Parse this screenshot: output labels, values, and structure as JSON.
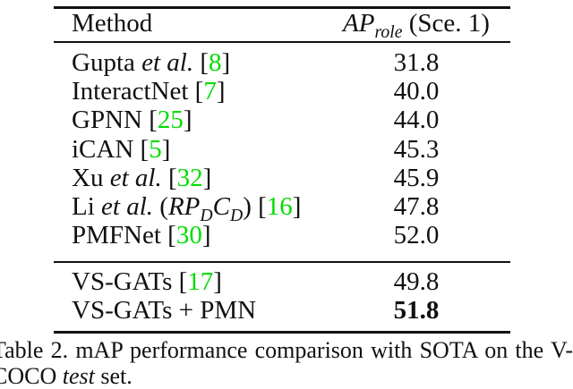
{
  "page": {
    "background": "#ffffff",
    "text_color": "#111111"
  },
  "colors": {
    "reference_green": "#00dd00",
    "rule_black": "#111111"
  },
  "table": {
    "header": {
      "method_label": "Method",
      "metric_segments": [
        {
          "t": "AP",
          "st": "m"
        },
        {
          "t": "role",
          "st": "s"
        },
        {
          "t": " (Sce. 1)",
          "st": "r"
        }
      ]
    },
    "groups": [
      {
        "rows": [
          {
            "segments": [
              {
                "t": "Gupta ",
                "st": "r"
              },
              {
                "t": "et al.",
                "st": "i"
              },
              {
                "t": " [",
                "st": "r"
              },
              {
                "t": "8",
                "st": "ref"
              },
              {
                "t": "]",
                "st": "r"
              }
            ],
            "value": "31.8",
            "bold": false
          },
          {
            "segments": [
              {
                "t": "InteractNet [",
                "st": "r"
              },
              {
                "t": "7",
                "st": "ref"
              },
              {
                "t": "]",
                "st": "r"
              }
            ],
            "value": "40.0",
            "bold": false
          },
          {
            "segments": [
              {
                "t": "GPNN [",
                "st": "r"
              },
              {
                "t": "25",
                "st": "ref"
              },
              {
                "t": "]",
                "st": "r"
              }
            ],
            "value": "44.0",
            "bold": false
          },
          {
            "segments": [
              {
                "t": "iCAN [",
                "st": "r"
              },
              {
                "t": "5",
                "st": "ref"
              },
              {
                "t": "]",
                "st": "r"
              }
            ],
            "value": "45.3",
            "bold": false
          },
          {
            "segments": [
              {
                "t": "Xu ",
                "st": "r"
              },
              {
                "t": "et al.",
                "st": "i"
              },
              {
                "t": " [",
                "st": "r"
              },
              {
                "t": "32",
                "st": "ref"
              },
              {
                "t": "]",
                "st": "r"
              }
            ],
            "value": "45.9",
            "bold": false
          },
          {
            "segments": [
              {
                "t": "Li ",
                "st": "r"
              },
              {
                "t": "et al.",
                "st": "i"
              },
              {
                "t": " (",
                "st": "r"
              },
              {
                "t": "RP",
                "st": "m"
              },
              {
                "t": "D",
                "st": "s"
              },
              {
                "t": "C",
                "st": "m"
              },
              {
                "t": "D",
                "st": "s"
              },
              {
                "t": ") [",
                "st": "r"
              },
              {
                "t": "16",
                "st": "ref"
              },
              {
                "t": "]",
                "st": "r"
              }
            ],
            "value": "47.8",
            "bold": false
          },
          {
            "segments": [
              {
                "t": "PMFNet [",
                "st": "r"
              },
              {
                "t": "30",
                "st": "ref"
              },
              {
                "t": "]",
                "st": "r"
              }
            ],
            "value": "52.0",
            "bold": false
          }
        ]
      },
      {
        "rows": [
          {
            "segments": [
              {
                "t": "VS-GATs [",
                "st": "r"
              },
              {
                "t": "17",
                "st": "ref"
              },
              {
                "t": "]",
                "st": "r"
              }
            ],
            "value": "49.8",
            "bold": false
          },
          {
            "segments": [
              {
                "t": "VS-GATs + PMN",
                "st": "r"
              }
            ],
            "value": "51.8",
            "bold": true
          }
        ]
      }
    ]
  },
  "caption": {
    "line1": "Table 2. mAP performance comparison with SOTA on the V-",
    "line2_segments": [
      {
        "t": "COCO ",
        "st": "r"
      },
      {
        "t": "test",
        "st": "i"
      },
      {
        "t": " set.",
        "st": "r"
      }
    ]
  }
}
